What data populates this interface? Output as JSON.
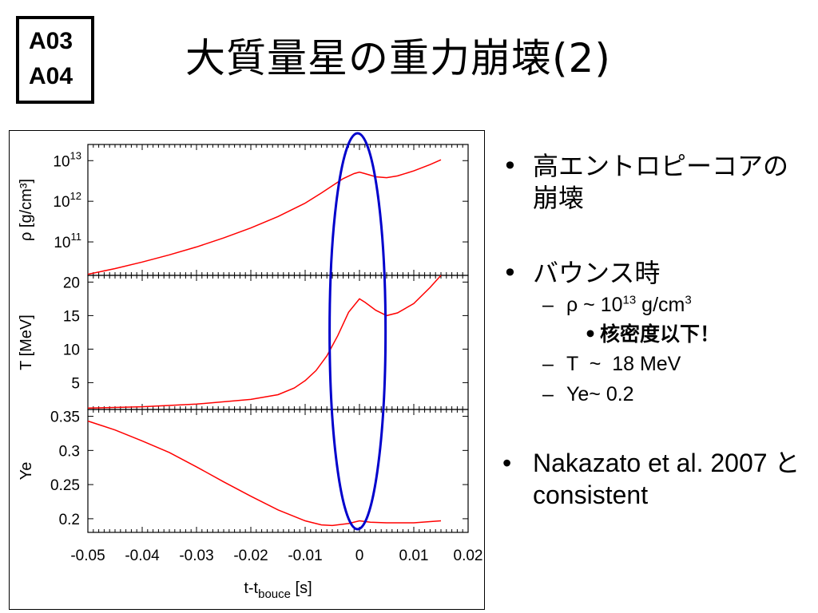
{
  "badge": {
    "line1": "A03",
    "line2": "A04"
  },
  "title": "大質量星の重力崩壊(2)",
  "bullets": {
    "b1_text": "高エントロピーコアの崩壊",
    "b2_text": "バウンス時",
    "sub1_prefix": "ρ ~ 10",
    "sub1_exp": "13",
    "sub1_mid": " g/cm",
    "sub1_unit_exp": "3",
    "sub1_note": "核密度以下！",
    "sub2": "T  ~  18 MeV",
    "sub3": "Ye~ 0.2",
    "b3_text": "Nakazato et al. 2007 と consistent",
    "bullet_symbol": "•",
    "dash_symbol": "–"
  },
  "chart_data": {
    "type": "line",
    "x_label": "t-t",
    "x_label_sub": "bouce",
    "x_label_unit": " [s]",
    "xlim": [
      -0.05,
      0.02
    ],
    "x_ticks": [
      "-0.05",
      "-0.04",
      "-0.03",
      "-0.02",
      "-0.01",
      "0",
      "0.01",
      "0.02"
    ],
    "line_color": "#ff0000",
    "highlight_color": "#0000cc",
    "highlight_x_range": [
      -0.0055,
      0.0048
    ],
    "panels": [
      {
        "id": "rho",
        "ylabel": "ρ [g/cm³]",
        "scale": "log",
        "ylim": [
          15000000000.0,
          25000000000000.0
        ],
        "yticks": [
          {
            "base": "10",
            "exp": "13",
            "v": 10000000000000.0
          },
          {
            "base": "10",
            "exp": "12",
            "v": 1000000000000.0
          },
          {
            "base": "10",
            "exp": "11",
            "v": 100000000000.0
          }
        ],
        "points": [
          [
            -0.05,
            16000000000.0
          ],
          [
            -0.045,
            22000000000.0
          ],
          [
            -0.04,
            32000000000.0
          ],
          [
            -0.035,
            48000000000.0
          ],
          [
            -0.03,
            75000000000.0
          ],
          [
            -0.025,
            125000000000.0
          ],
          [
            -0.02,
            220000000000.0
          ],
          [
            -0.015,
            420000000000.0
          ],
          [
            -0.01,
            900000000000.0
          ],
          [
            -0.007,
            1600000000000.0
          ],
          [
            -0.005,
            2400000000000.0
          ],
          [
            -0.003,
            3600000000000.0
          ],
          [
            -0.001,
            4800000000000.0
          ],
          [
            0,
            5200000000000.0
          ],
          [
            0.001,
            4800000000000.0
          ],
          [
            0.003,
            4000000000000.0
          ],
          [
            0.005,
            3800000000000.0
          ],
          [
            0.007,
            4200000000000.0
          ],
          [
            0.01,
            5600000000000.0
          ],
          [
            0.013,
            8000000000000.0
          ],
          [
            0.015,
            10500000000000.0
          ]
        ]
      },
      {
        "id": "T",
        "ylabel": "T [MeV]",
        "scale": "linear",
        "ylim": [
          1,
          21
        ],
        "yticks": [
          {
            "label": "20",
            "v": 20
          },
          {
            "label": "15",
            "v": 15
          },
          {
            "label": "10",
            "v": 10
          },
          {
            "label": "5",
            "v": 5
          }
        ],
        "points": [
          [
            -0.05,
            1.2
          ],
          [
            -0.04,
            1.4
          ],
          [
            -0.03,
            1.8
          ],
          [
            -0.02,
            2.5
          ],
          [
            -0.015,
            3.2
          ],
          [
            -0.012,
            4.2
          ],
          [
            -0.01,
            5.3
          ],
          [
            -0.008,
            6.8
          ],
          [
            -0.006,
            9
          ],
          [
            -0.004,
            12
          ],
          [
            -0.002,
            15.5
          ],
          [
            0,
            17.5
          ],
          [
            0.001,
            17
          ],
          [
            0.003,
            15.8
          ],
          [
            0.005,
            15
          ],
          [
            0.007,
            15.4
          ],
          [
            0.01,
            16.8
          ],
          [
            0.013,
            19.2
          ],
          [
            0.015,
            21
          ]
        ]
      },
      {
        "id": "Ye",
        "ylabel": "Ye",
        "scale": "linear",
        "ylim": [
          0.18,
          0.36
        ],
        "yticks": [
          {
            "label": "0.35",
            "v": 0.35
          },
          {
            "label": "0.3",
            "v": 0.3
          },
          {
            "label": "0.25",
            "v": 0.25
          },
          {
            "label": "0.2",
            "v": 0.2
          }
        ],
        "points": [
          [
            -0.05,
            0.343
          ],
          [
            -0.045,
            0.33
          ],
          [
            -0.04,
            0.314
          ],
          [
            -0.035,
            0.297
          ],
          [
            -0.03,
            0.276
          ],
          [
            -0.025,
            0.254
          ],
          [
            -0.02,
            0.233
          ],
          [
            -0.015,
            0.213
          ],
          [
            -0.01,
            0.197
          ],
          [
            -0.007,
            0.191
          ],
          [
            -0.005,
            0.19
          ],
          [
            -0.002,
            0.193
          ],
          [
            0,
            0.197
          ],
          [
            0.002,
            0.195
          ],
          [
            0.005,
            0.194
          ],
          [
            0.01,
            0.194
          ],
          [
            0.015,
            0.197
          ]
        ]
      }
    ]
  }
}
